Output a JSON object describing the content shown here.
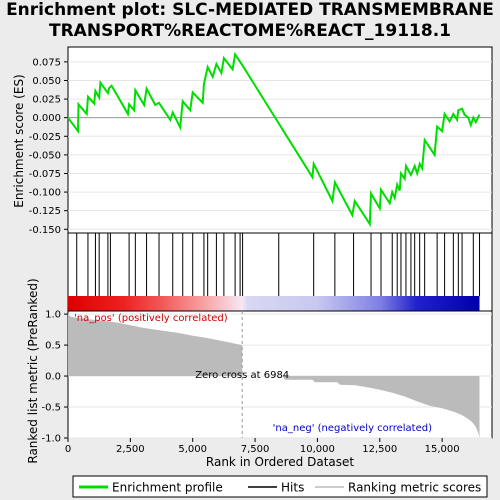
{
  "title_line1": "Enrichment plot: SLC-MEDIATED TRANSMEMBRANE",
  "title_line2": "TRANSPORT%REACTOME%REACT_19118.1",
  "chart_data": [
    {
      "type": "line",
      "name": "enrichment-profile",
      "ylabel": "Enrichment score (ES)",
      "xlim": [
        0,
        17000
      ],
      "ylim": [
        -0.155,
        0.095
      ],
      "yticks": [
        0.075,
        0.05,
        0.025,
        0.0,
        -0.025,
        -0.05,
        -0.075,
        -0.1,
        -0.125,
        -0.15
      ],
      "ytick_labels": [
        "0.075",
        "0.050",
        "0.025",
        "0.000",
        "-0.025",
        "-0.050",
        "-0.075",
        "-0.100",
        "-0.125",
        "-0.150"
      ],
      "color": "#00dd00",
      "points": [
        [
          0,
          0.0
        ],
        [
          400,
          -0.018
        ],
        [
          420,
          0.018
        ],
        [
          750,
          0.005
        ],
        [
          800,
          0.028
        ],
        [
          1050,
          0.019
        ],
        [
          1100,
          0.036
        ],
        [
          1250,
          0.027
        ],
        [
          1300,
          0.047
        ],
        [
          1600,
          0.033
        ],
        [
          1650,
          0.04
        ],
        [
          1750,
          0.043
        ],
        [
          2400,
          0.005
        ],
        [
          2450,
          0.018
        ],
        [
          2650,
          0.01
        ],
        [
          2700,
          0.037
        ],
        [
          3050,
          0.017
        ],
        [
          3150,
          0.039
        ],
        [
          3500,
          0.017
        ],
        [
          3650,
          0.02
        ],
        [
          4100,
          -0.003
        ],
        [
          4200,
          0.007
        ],
        [
          4500,
          -0.013
        ],
        [
          4600,
          0.022
        ],
        [
          4900,
          0.01
        ],
        [
          5000,
          0.034
        ],
        [
          5400,
          0.02
        ],
        [
          5450,
          0.045
        ],
        [
          5600,
          0.068
        ],
        [
          5800,
          0.055
        ],
        [
          5950,
          0.072
        ],
        [
          6150,
          0.06
        ],
        [
          6250,
          0.08
        ],
        [
          6600,
          0.065
        ],
        [
          6700,
          0.085
        ],
        [
          7000,
          0.07
        ],
        [
          8400,
          -0.005
        ],
        [
          9800,
          -0.08
        ],
        [
          9850,
          -0.062
        ],
        [
          10600,
          -0.112
        ],
        [
          10700,
          -0.087
        ],
        [
          11400,
          -0.131
        ],
        [
          11500,
          -0.112
        ],
        [
          12100,
          -0.143
        ],
        [
          12150,
          -0.102
        ],
        [
          12500,
          -0.122
        ],
        [
          12550,
          -0.097
        ],
        [
          12900,
          -0.115
        ],
        [
          13000,
          -0.1
        ],
        [
          13100,
          -0.108
        ],
        [
          13200,
          -0.09
        ],
        [
          13300,
          -0.098
        ],
        [
          13350,
          -0.075
        ],
        [
          13500,
          -0.082
        ],
        [
          13550,
          -0.065
        ],
        [
          13750,
          -0.077
        ],
        [
          13900,
          -0.065
        ],
        [
          14000,
          -0.075
        ],
        [
          14100,
          -0.062
        ],
        [
          14200,
          -0.068
        ],
        [
          14300,
          -0.03
        ],
        [
          14700,
          -0.05
        ],
        [
          14800,
          -0.012
        ],
        [
          15000,
          -0.018
        ],
        [
          15100,
          0.005
        ],
        [
          15300,
          -0.005
        ],
        [
          15450,
          0.005
        ],
        [
          15600,
          -0.003
        ],
        [
          15650,
          0.01
        ],
        [
          15800,
          0.012
        ],
        [
          15900,
          0.004
        ],
        [
          16050,
          0.0
        ],
        [
          16150,
          -0.01
        ],
        [
          16250,
          0.0
        ],
        [
          16350,
          -0.006
        ],
        [
          16500,
          0.004
        ]
      ]
    },
    {
      "type": "heatmap",
      "name": "hits-and-rank-colorbar",
      "legend_labels": [
        "Hits"
      ],
      "hit_positions": [
        350,
        800,
        1100,
        1250,
        1600,
        1700,
        2450,
        2700,
        3150,
        3650,
        4200,
        4600,
        5000,
        5450,
        5600,
        5950,
        6250,
        6700,
        6900,
        7000,
        8450,
        9850,
        10700,
        11450,
        12150,
        12550,
        13000,
        13200,
        13350,
        13550,
        13750,
        13900,
        14100,
        14300,
        14800,
        15100,
        15450,
        15650,
        15800,
        16250,
        16500
      ],
      "gradient_stops": [
        {
          "at": 0,
          "color": "#dd0000"
        },
        {
          "at": 2200,
          "color": "#ee2020"
        },
        {
          "at": 3800,
          "color": "#f25a5a"
        },
        {
          "at": 5500,
          "color": "#f8a4a4"
        },
        {
          "at": 6984,
          "color": "#f5e8f5"
        },
        {
          "at": 7200,
          "color": "#d8d8f2"
        },
        {
          "at": 10000,
          "color": "#c8c8f0"
        },
        {
          "at": 12500,
          "color": "#8080e4"
        },
        {
          "at": 14000,
          "color": "#2020cc"
        },
        {
          "at": 16500,
          "color": "#0000aa"
        }
      ]
    },
    {
      "type": "area",
      "name": "ranked-list-metric",
      "xlabel": "Rank in Ordered Dataset",
      "ylabel": "Ranked list metric (PreRanked)",
      "xlim": [
        0,
        17000
      ],
      "ylim": [
        -1.0,
        1.05
      ],
      "yticks": [
        1.0,
        0.5,
        0.0,
        -0.5,
        -1.0
      ],
      "ytick_labels": [
        "1.0",
        "0.5",
        "0.0",
        "-0.5",
        "-1.0"
      ],
      "xticks": [
        0,
        2500,
        5000,
        7500,
        10000,
        12500,
        15000
      ],
      "xtick_labels": [
        "0",
        "2,500",
        "5,000",
        "7,500",
        "10,000",
        "12,500",
        "15,000"
      ],
      "points": [
        [
          0,
          1.0
        ],
        [
          100,
          0.96
        ],
        [
          500,
          0.93
        ],
        [
          1000,
          0.91
        ],
        [
          1500,
          0.89
        ],
        [
          2000,
          0.86
        ],
        [
          2500,
          0.82
        ],
        [
          3000,
          0.78
        ],
        [
          3500,
          0.75
        ],
        [
          4000,
          0.72
        ],
        [
          4500,
          0.69
        ],
        [
          5000,
          0.65
        ],
        [
          5500,
          0.62
        ],
        [
          6000,
          0.58
        ],
        [
          6500,
          0.54
        ],
        [
          6984,
          0.5
        ],
        [
          6985,
          0.0
        ],
        [
          7000,
          0.0
        ],
        [
          8600,
          0.0
        ],
        [
          8700,
          -0.06
        ],
        [
          9800,
          -0.06
        ],
        [
          9900,
          -0.1
        ],
        [
          10800,
          -0.1
        ],
        [
          10900,
          -0.14
        ],
        [
          11500,
          -0.15
        ],
        [
          12000,
          -0.18
        ],
        [
          12500,
          -0.22
        ],
        [
          13000,
          -0.27
        ],
        [
          13500,
          -0.33
        ],
        [
          14000,
          -0.41
        ],
        [
          14500,
          -0.48
        ],
        [
          15000,
          -0.52
        ],
        [
          15500,
          -0.58
        ],
        [
          15800,
          -0.63
        ],
        [
          16000,
          -0.68
        ],
        [
          16200,
          -0.74
        ],
        [
          16350,
          -0.82
        ],
        [
          16450,
          -0.92
        ],
        [
          16500,
          -1.0
        ]
      ],
      "annotations": {
        "zero_cross": "Zero cross at 6984",
        "zero_cross_rank": 6984,
        "pos_label": "'na_pos' (positively correlated)",
        "neg_label": "'na_neg' (negatively correlated)"
      }
    }
  ],
  "legend": {
    "entries": [
      {
        "label": "Enrichment profile",
        "color": "#00dd00"
      },
      {
        "label": "Hits",
        "color": "#000000"
      },
      {
        "label": "Ranking metric scores",
        "color": "#bbbbbb"
      }
    ]
  }
}
